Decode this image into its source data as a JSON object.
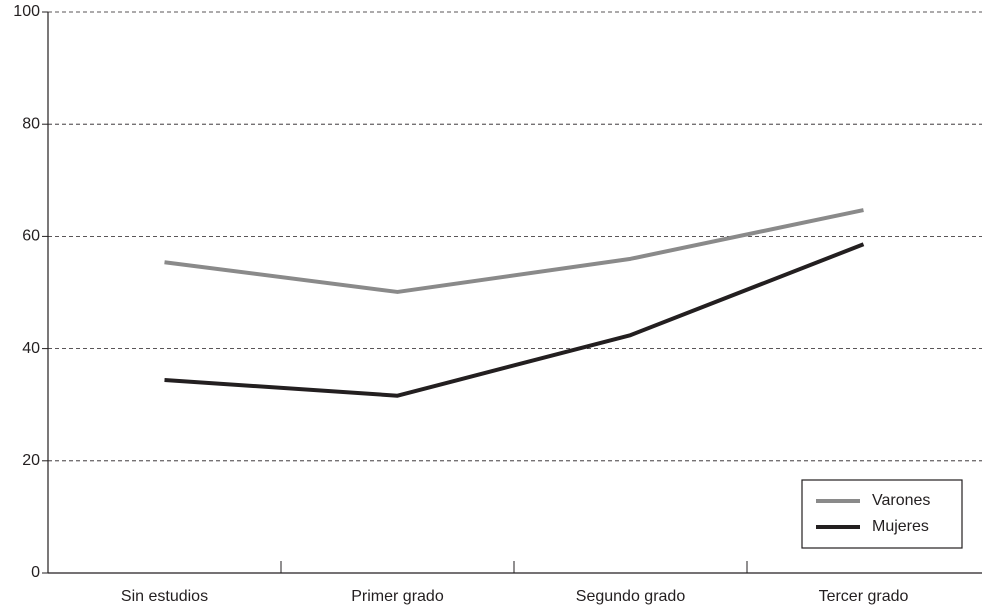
{
  "chart_data": {
    "type": "line",
    "categories": [
      "Sin estudios",
      "Primer grado",
      "Segundo grado",
      "Tercer grado"
    ],
    "series": [
      {
        "name": "Varones",
        "color": "#8a8a8a",
        "values": [
          55.4,
          50.1,
          56.0,
          64.7
        ]
      },
      {
        "name": "Mujeres",
        "color": "#231f20",
        "values": [
          34.4,
          31.6,
          42.4,
          58.6
        ]
      }
    ],
    "ylim": [
      0,
      100
    ],
    "yticks": [
      0,
      20,
      40,
      60,
      80,
      100
    ],
    "grid": true,
    "legend": "lower right"
  }
}
